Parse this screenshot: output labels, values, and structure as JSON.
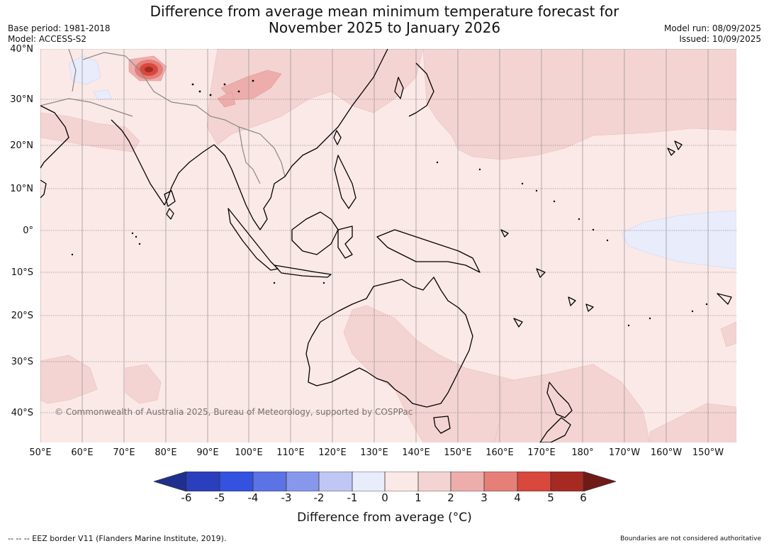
{
  "title": {
    "line1": "Difference from average mean minimum temperature forecast for",
    "line2": "November 2025 to January 2026"
  },
  "meta_left": {
    "base_period": "Base period: 1981-2018",
    "model": "Model: ACCESS-S2"
  },
  "meta_right": {
    "model_run": "Model run: 08/09/2025",
    "issued": "Issued: 10/09/2025"
  },
  "map": {
    "lat_labels": [
      "40°N",
      "30°N",
      "20°N",
      "10°N",
      "0°",
      "10°S",
      "20°S",
      "30°S",
      "40°S"
    ],
    "lon_labels": [
      "50°E",
      "60°E",
      "70°E",
      "80°E",
      "90°E",
      "100°E",
      "110°E",
      "120°E",
      "130°E",
      "140°E",
      "150°E",
      "160°E",
      "170°E",
      "180°",
      "170°W",
      "160°W",
      "150°W"
    ],
    "copyright": "© Commonwealth of Australia 2025, Bureau of Meteorology, supported by COSPPac",
    "background_anomaly_color": "#fbe9e7"
  },
  "colorbar": {
    "ticks": [
      "-6",
      "-5",
      "-4",
      "-3",
      "-2",
      "-1",
      "0",
      "1",
      "2",
      "3",
      "4",
      "5",
      "6"
    ],
    "colors": [
      "#1f2f8f",
      "#2a3fbe",
      "#3352e0",
      "#5b73e5",
      "#8798ec",
      "#bfc7f4",
      "#e9ecfb",
      "#fbe9e7",
      "#f4d4d2",
      "#edaeab",
      "#e57f78",
      "#d8483c",
      "#a72a22",
      "#701a17"
    ],
    "label": "Difference from average (°C)"
  },
  "footer": {
    "left": "--  --  -- EEZ border V11 (Flanders Marine Institute, 2019).",
    "right": "Boundaries are not considered authoritative"
  }
}
